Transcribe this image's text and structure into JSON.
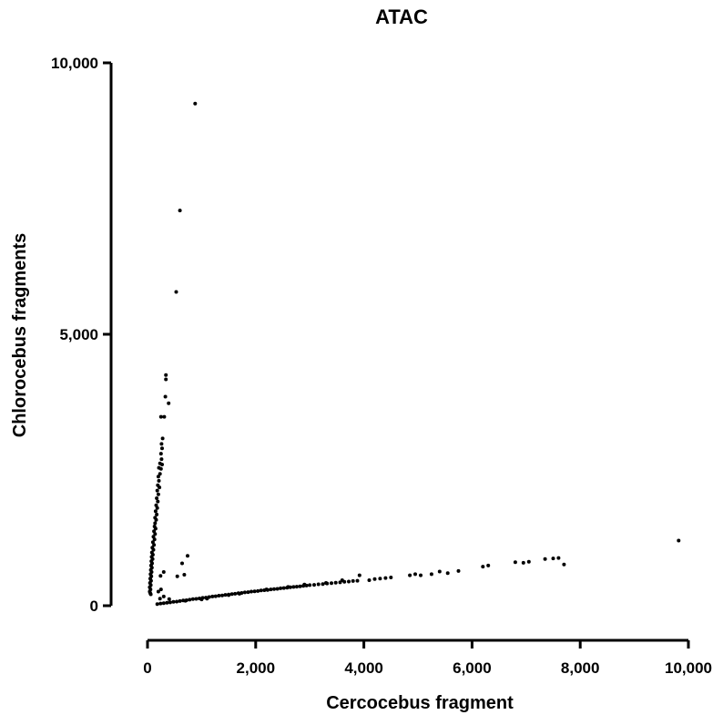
{
  "chart_data": {
    "type": "scatter",
    "title": "ATAC",
    "xlabel": "Cercocebus fragment",
    "ylabel": "Chlorocebus fragments",
    "xlim": [
      0,
      10000
    ],
    "ylim": [
      0,
      10000
    ],
    "x_ticks": [
      0,
      2000,
      4000,
      6000,
      8000,
      10000
    ],
    "x_tick_labels": [
      "0",
      "2,000",
      "4,000",
      "6,000",
      "8,000",
      "10,000"
    ],
    "y_ticks": [
      0,
      5000,
      10000
    ],
    "y_tick_labels": [
      "0",
      "5,000",
      "10,000"
    ],
    "grid": false,
    "legend": "none",
    "point_color": "#000000",
    "series": [
      {
        "points": [
          [
            880,
            9250
          ],
          [
            600,
            7280
          ],
          [
            530,
            5780
          ],
          [
            340,
            4250
          ],
          [
            340,
            4170
          ],
          [
            330,
            3850
          ],
          [
            390,
            3730
          ],
          [
            250,
            3480
          ],
          [
            310,
            3480
          ],
          [
            280,
            3080
          ],
          [
            260,
            2980
          ],
          [
            270,
            2900
          ],
          [
            250,
            2800
          ],
          [
            260,
            2700
          ],
          [
            230,
            2620
          ],
          [
            270,
            2600
          ],
          [
            210,
            2540
          ],
          [
            250,
            2520
          ],
          [
            230,
            2430
          ],
          [
            200,
            2380
          ],
          [
            210,
            2300
          ],
          [
            190,
            2220
          ],
          [
            220,
            2180
          ],
          [
            180,
            2120
          ],
          [
            200,
            2050
          ],
          [
            170,
            1980
          ],
          [
            190,
            1920
          ],
          [
            160,
            1850
          ],
          [
            180,
            1800
          ],
          [
            150,
            1740
          ],
          [
            170,
            1680
          ],
          [
            140,
            1620
          ],
          [
            160,
            1580
          ],
          [
            140,
            1520
          ],
          [
            130,
            1460
          ],
          [
            150,
            1420
          ],
          [
            120,
            1370
          ],
          [
            140,
            1320
          ],
          [
            110,
            1270
          ],
          [
            130,
            1220
          ],
          [
            100,
            1170
          ],
          [
            120,
            1120
          ],
          [
            90,
            1070
          ],
          [
            110,
            1030
          ],
          [
            80,
            980
          ],
          [
            100,
            940
          ],
          [
            75,
            900
          ],
          [
            95,
            860
          ],
          [
            70,
            820
          ],
          [
            85,
            780
          ],
          [
            65,
            740
          ],
          [
            80,
            700
          ],
          [
            60,
            660
          ],
          [
            75,
            620
          ],
          [
            55,
            580
          ],
          [
            70,
            540
          ],
          [
            50,
            500
          ],
          [
            65,
            460
          ],
          [
            45,
            420
          ],
          [
            60,
            380
          ],
          [
            40,
            340
          ],
          [
            55,
            300
          ],
          [
            40,
            260
          ],
          [
            50,
            230
          ],
          [
            60,
            210
          ],
          [
            740,
            920
          ],
          [
            640,
            780
          ],
          [
            300,
            620
          ],
          [
            240,
            550
          ],
          [
            550,
            540
          ],
          [
            680,
            570
          ],
          [
            250,
            300
          ],
          [
            200,
            260
          ],
          [
            230,
            130
          ],
          [
            300,
            170
          ],
          [
            400,
            120
          ],
          [
            180,
            30
          ],
          [
            240,
            40
          ],
          [
            300,
            45
          ],
          [
            360,
            55
          ],
          [
            420,
            60
          ],
          [
            480,
            70
          ],
          [
            540,
            75
          ],
          [
            600,
            85
          ],
          [
            660,
            95
          ],
          [
            720,
            100
          ],
          [
            780,
            110
          ],
          [
            840,
            120
          ],
          [
            900,
            125
          ],
          [
            960,
            135
          ],
          [
            1020,
            145
          ],
          [
            1080,
            150
          ],
          [
            1140,
            160
          ],
          [
            1200,
            170
          ],
          [
            1260,
            175
          ],
          [
            1320,
            185
          ],
          [
            1380,
            190
          ],
          [
            1440,
            200
          ],
          [
            1500,
            205
          ],
          [
            1560,
            215
          ],
          [
            1620,
            220
          ],
          [
            1680,
            230
          ],
          [
            1740,
            235
          ],
          [
            1800,
            245
          ],
          [
            1860,
            250
          ],
          [
            1920,
            260
          ],
          [
            1980,
            265
          ],
          [
            2040,
            270
          ],
          [
            2100,
            280
          ],
          [
            2160,
            285
          ],
          [
            2220,
            290
          ],
          [
            2280,
            300
          ],
          [
            2340,
            305
          ],
          [
            2400,
            310
          ],
          [
            2460,
            320
          ],
          [
            2520,
            325
          ],
          [
            2580,
            330
          ],
          [
            2640,
            340
          ],
          [
            2700,
            345
          ],
          [
            2760,
            350
          ],
          [
            2820,
            355
          ],
          [
            2880,
            365
          ],
          [
            2940,
            370
          ],
          [
            3000,
            380
          ],
          [
            3080,
            385
          ],
          [
            3160,
            395
          ],
          [
            3240,
            400
          ],
          [
            3320,
            410
          ],
          [
            3400,
            415
          ],
          [
            3480,
            425
          ],
          [
            3560,
            430
          ],
          [
            3640,
            440
          ],
          [
            3720,
            445
          ],
          [
            3800,
            455
          ],
          [
            3880,
            460
          ],
          [
            3920,
            560
          ],
          [
            4100,
            470
          ],
          [
            4200,
            490
          ],
          [
            4300,
            500
          ],
          [
            4400,
            510
          ],
          [
            4500,
            520
          ],
          [
            4850,
            560
          ],
          [
            4950,
            580
          ],
          [
            5050,
            560
          ],
          [
            5250,
            580
          ],
          [
            5400,
            630
          ],
          [
            5550,
            600
          ],
          [
            5750,
            640
          ],
          [
            6200,
            720
          ],
          [
            6300,
            740
          ],
          [
            6800,
            800
          ],
          [
            6950,
            790
          ],
          [
            7050,
            810
          ],
          [
            7350,
            860
          ],
          [
            7500,
            870
          ],
          [
            7600,
            880
          ],
          [
            7700,
            760
          ],
          [
            9820,
            1200
          ],
          [
            1000,
            115
          ],
          [
            1500,
            195
          ],
          [
            2200,
            300
          ],
          [
            2600,
            345
          ],
          [
            3300,
            420
          ],
          [
            3600,
            470
          ],
          [
            700,
            90
          ],
          [
            1100,
            130
          ],
          [
            1700,
            220
          ],
          [
            2900,
            390
          ]
        ]
      }
    ]
  }
}
